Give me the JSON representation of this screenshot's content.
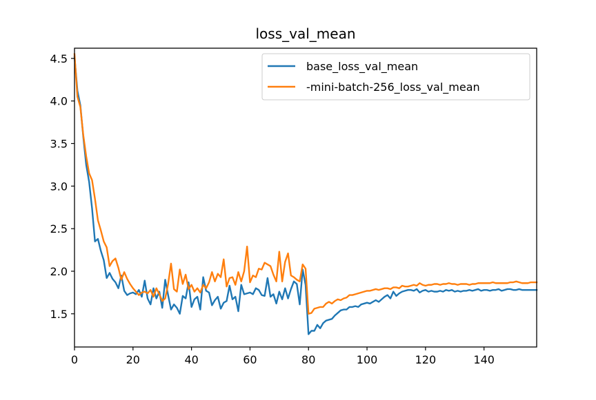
{
  "chart_data": {
    "type": "line",
    "title": "loss_val_mean",
    "xlabel": "",
    "ylabel": "",
    "xlim": [
      0,
      158
    ],
    "ylim": [
      1.11,
      4.62
    ],
    "xticks": [
      0,
      20,
      40,
      60,
      80,
      100,
      120,
      140
    ],
    "yticks": [
      1.5,
      2.0,
      2.5,
      3.0,
      3.5,
      4.0,
      4.5
    ],
    "xtick_labels": [
      "0",
      "20",
      "40",
      "60",
      "80",
      "100",
      "120",
      "140"
    ],
    "ytick_labels": [
      "1.5",
      "2.0",
      "2.5",
      "3.0",
      "3.5",
      "4.0",
      "4.5"
    ],
    "grid": false,
    "legend_position": "top-right",
    "series": [
      {
        "name": "base_loss_val_mean",
        "color": "#1f77b4",
        "points": [
          [
            0,
            4.52
          ],
          [
            1,
            4.12
          ],
          [
            2,
            3.95
          ],
          [
            3,
            3.58
          ],
          [
            4,
            3.25
          ],
          [
            5,
            3.05
          ],
          [
            6,
            2.74
          ],
          [
            7,
            2.35
          ],
          [
            8,
            2.38
          ],
          [
            9,
            2.24
          ],
          [
            10,
            2.13
          ],
          [
            11,
            1.92
          ],
          [
            12,
            1.98
          ],
          [
            13,
            1.91
          ],
          [
            14,
            1.87
          ],
          [
            15,
            1.8
          ],
          [
            16,
            1.95
          ],
          [
            17,
            1.77
          ],
          [
            18,
            1.72
          ],
          [
            19,
            1.74
          ],
          [
            20,
            1.75
          ],
          [
            21,
            1.73
          ],
          [
            22,
            1.78
          ],
          [
            23,
            1.7
          ],
          [
            24,
            1.89
          ],
          [
            25,
            1.68
          ],
          [
            26,
            1.61
          ],
          [
            27,
            1.8
          ],
          [
            28,
            1.68
          ],
          [
            29,
            1.76
          ],
          [
            30,
            1.57
          ],
          [
            31,
            1.9
          ],
          [
            32,
            1.72
          ],
          [
            33,
            1.55
          ],
          [
            34,
            1.61
          ],
          [
            35,
            1.57
          ],
          [
            36,
            1.5
          ],
          [
            37,
            1.71
          ],
          [
            38,
            1.68
          ],
          [
            39,
            1.87
          ],
          [
            40,
            1.58
          ],
          [
            41,
            1.67
          ],
          [
            42,
            1.7
          ],
          [
            43,
            1.55
          ],
          [
            44,
            1.93
          ],
          [
            45,
            1.77
          ],
          [
            46,
            1.75
          ],
          [
            47,
            1.6
          ],
          [
            48,
            1.66
          ],
          [
            49,
            1.7
          ],
          [
            50,
            1.56
          ],
          [
            51,
            1.63
          ],
          [
            52,
            1.65
          ],
          [
            53,
            1.83
          ],
          [
            54,
            1.67
          ],
          [
            55,
            1.7
          ],
          [
            56,
            1.53
          ],
          [
            57,
            1.84
          ],
          [
            58,
            1.73
          ],
          [
            59,
            1.74
          ],
          [
            60,
            1.75
          ],
          [
            61,
            1.73
          ],
          [
            62,
            1.8
          ],
          [
            63,
            1.78
          ],
          [
            64,
            1.72
          ],
          [
            65,
            1.71
          ],
          [
            66,
            1.92
          ],
          [
            67,
            1.7
          ],
          [
            68,
            1.73
          ],
          [
            69,
            1.62
          ],
          [
            70,
            1.76
          ],
          [
            71,
            1.67
          ],
          [
            72,
            1.8
          ],
          [
            73,
            1.68
          ],
          [
            74,
            1.79
          ],
          [
            75,
            1.88
          ],
          [
            76,
            1.85
          ],
          [
            77,
            1.61
          ],
          [
            78,
            2.02
          ],
          [
            79,
            1.84
          ],
          [
            80,
            1.26
          ],
          [
            81,
            1.3
          ],
          [
            82,
            1.3
          ],
          [
            83,
            1.37
          ],
          [
            84,
            1.33
          ],
          [
            85,
            1.39
          ],
          [
            86,
            1.42
          ],
          [
            87,
            1.43
          ],
          [
            88,
            1.44
          ],
          [
            89,
            1.48
          ],
          [
            90,
            1.51
          ],
          [
            91,
            1.54
          ],
          [
            92,
            1.55
          ],
          [
            93,
            1.55
          ],
          [
            94,
            1.58
          ],
          [
            95,
            1.58
          ],
          [
            96,
            1.59
          ],
          [
            97,
            1.58
          ],
          [
            98,
            1.61
          ],
          [
            99,
            1.62
          ],
          [
            100,
            1.63
          ],
          [
            101,
            1.62
          ],
          [
            102,
            1.64
          ],
          [
            103,
            1.66
          ],
          [
            104,
            1.64
          ],
          [
            105,
            1.67
          ],
          [
            106,
            1.7
          ],
          [
            107,
            1.72
          ],
          [
            108,
            1.68
          ],
          [
            109,
            1.76
          ],
          [
            110,
            1.71
          ],
          [
            111,
            1.74
          ],
          [
            112,
            1.76
          ],
          [
            113,
            1.77
          ],
          [
            114,
            1.78
          ],
          [
            115,
            1.78
          ],
          [
            116,
            1.77
          ],
          [
            117,
            1.79
          ],
          [
            118,
            1.75
          ],
          [
            119,
            1.77
          ],
          [
            120,
            1.78
          ],
          [
            121,
            1.76
          ],
          [
            122,
            1.77
          ],
          [
            123,
            1.76
          ],
          [
            124,
            1.76
          ],
          [
            125,
            1.77
          ],
          [
            126,
            1.76
          ],
          [
            127,
            1.78
          ],
          [
            128,
            1.77
          ],
          [
            129,
            1.78
          ],
          [
            130,
            1.76
          ],
          [
            131,
            1.77
          ],
          [
            132,
            1.76
          ],
          [
            133,
            1.77
          ],
          [
            134,
            1.77
          ],
          [
            135,
            1.78
          ],
          [
            136,
            1.77
          ],
          [
            137,
            1.78
          ],
          [
            138,
            1.79
          ],
          [
            139,
            1.77
          ],
          [
            140,
            1.78
          ],
          [
            141,
            1.78
          ],
          [
            142,
            1.77
          ],
          [
            143,
            1.78
          ],
          [
            144,
            1.78
          ],
          [
            145,
            1.79
          ],
          [
            146,
            1.77
          ],
          [
            147,
            1.78
          ],
          [
            148,
            1.79
          ],
          [
            149,
            1.79
          ],
          [
            150,
            1.78
          ],
          [
            151,
            1.78
          ],
          [
            152,
            1.79
          ],
          [
            153,
            1.78
          ],
          [
            154,
            1.78
          ],
          [
            155,
            1.78
          ],
          [
            156,
            1.78
          ],
          [
            157,
            1.78
          ],
          [
            158,
            1.78
          ]
        ]
      },
      {
        "name": "-mini-batch-256_loss_val_mean",
        "color": "#ff7f0e",
        "points": [
          [
            0,
            4.55
          ],
          [
            1,
            4.05
          ],
          [
            2,
            3.93
          ],
          [
            3,
            3.6
          ],
          [
            4,
            3.35
          ],
          [
            5,
            3.15
          ],
          [
            6,
            3.07
          ],
          [
            7,
            2.85
          ],
          [
            8,
            2.6
          ],
          [
            9,
            2.48
          ],
          [
            10,
            2.35
          ],
          [
            11,
            2.28
          ],
          [
            12,
            2.06
          ],
          [
            13,
            2.12
          ],
          [
            14,
            2.15
          ],
          [
            15,
            2.04
          ],
          [
            16,
            1.9
          ],
          [
            17,
            1.99
          ],
          [
            18,
            1.91
          ],
          [
            19,
            1.85
          ],
          [
            20,
            1.8
          ],
          [
            21,
            1.76
          ],
          [
            22,
            1.72
          ],
          [
            23,
            1.75
          ],
          [
            24,
            1.76
          ],
          [
            25,
            1.74
          ],
          [
            26,
            1.78
          ],
          [
            27,
            1.7
          ],
          [
            28,
            1.8
          ],
          [
            29,
            1.73
          ],
          [
            30,
            1.65
          ],
          [
            31,
            1.68
          ],
          [
            32,
            1.85
          ],
          [
            33,
            2.09
          ],
          [
            34,
            1.79
          ],
          [
            35,
            1.76
          ],
          [
            36,
            2.02
          ],
          [
            37,
            1.85
          ],
          [
            38,
            1.96
          ],
          [
            39,
            1.79
          ],
          [
            40,
            1.84
          ],
          [
            41,
            1.76
          ],
          [
            42,
            1.8
          ],
          [
            43,
            1.75
          ],
          [
            44,
            1.84
          ],
          [
            45,
            1.8
          ],
          [
            46,
            1.87
          ],
          [
            47,
            1.99
          ],
          [
            48,
            1.88
          ],
          [
            49,
            1.97
          ],
          [
            50,
            1.93
          ],
          [
            51,
            2.14
          ],
          [
            52,
            1.82
          ],
          [
            53,
            1.92
          ],
          [
            54,
            1.93
          ],
          [
            55,
            1.84
          ],
          [
            56,
            1.99
          ],
          [
            57,
            1.88
          ],
          [
            58,
            2.0
          ],
          [
            59,
            2.29
          ],
          [
            60,
            1.87
          ],
          [
            61,
            1.95
          ],
          [
            62,
            1.93
          ],
          [
            63,
            2.03
          ],
          [
            64,
            2.02
          ],
          [
            65,
            2.1
          ],
          [
            66,
            2.08
          ],
          [
            67,
            2.06
          ],
          [
            68,
            1.96
          ],
          [
            69,
            1.88
          ],
          [
            70,
            2.23
          ],
          [
            71,
            1.88
          ],
          [
            72,
            2.11
          ],
          [
            73,
            2.21
          ],
          [
            74,
            1.95
          ],
          [
            75,
            1.93
          ],
          [
            76,
            1.9
          ],
          [
            77,
            1.88
          ],
          [
            78,
            2.08
          ],
          [
            79,
            2.03
          ],
          [
            80,
            1.5
          ],
          [
            81,
            1.51
          ],
          [
            82,
            1.56
          ],
          [
            83,
            1.57
          ],
          [
            84,
            1.58
          ],
          [
            85,
            1.58
          ],
          [
            86,
            1.62
          ],
          [
            87,
            1.64
          ],
          [
            88,
            1.62
          ],
          [
            89,
            1.65
          ],
          [
            90,
            1.67
          ],
          [
            91,
            1.66
          ],
          [
            92,
            1.68
          ],
          [
            93,
            1.69
          ],
          [
            94,
            1.72
          ],
          [
            95,
            1.72
          ],
          [
            96,
            1.73
          ],
          [
            97,
            1.74
          ],
          [
            98,
            1.75
          ],
          [
            99,
            1.76
          ],
          [
            100,
            1.77
          ],
          [
            101,
            1.77
          ],
          [
            102,
            1.78
          ],
          [
            103,
            1.79
          ],
          [
            104,
            1.78
          ],
          [
            105,
            1.79
          ],
          [
            106,
            1.8
          ],
          [
            107,
            1.8
          ],
          [
            108,
            1.79
          ],
          [
            109,
            1.81
          ],
          [
            110,
            1.81
          ],
          [
            111,
            1.8
          ],
          [
            112,
            1.83
          ],
          [
            113,
            1.82
          ],
          [
            114,
            1.82
          ],
          [
            115,
            1.83
          ],
          [
            116,
            1.84
          ],
          [
            117,
            1.83
          ],
          [
            118,
            1.86
          ],
          [
            119,
            1.84
          ],
          [
            120,
            1.83
          ],
          [
            121,
            1.84
          ],
          [
            122,
            1.84
          ],
          [
            123,
            1.85
          ],
          [
            124,
            1.85
          ],
          [
            125,
            1.84
          ],
          [
            126,
            1.85
          ],
          [
            127,
            1.85
          ],
          [
            128,
            1.86
          ],
          [
            129,
            1.85
          ],
          [
            130,
            1.85
          ],
          [
            131,
            1.84
          ],
          [
            132,
            1.85
          ],
          [
            133,
            1.85
          ],
          [
            134,
            1.85
          ],
          [
            135,
            1.84
          ],
          [
            136,
            1.85
          ],
          [
            137,
            1.85
          ],
          [
            138,
            1.86
          ],
          [
            139,
            1.86
          ],
          [
            140,
            1.86
          ],
          [
            141,
            1.86
          ],
          [
            142,
            1.86
          ],
          [
            143,
            1.87
          ],
          [
            144,
            1.86
          ],
          [
            145,
            1.86
          ],
          [
            146,
            1.86
          ],
          [
            147,
            1.86
          ],
          [
            148,
            1.86
          ],
          [
            149,
            1.87
          ],
          [
            150,
            1.87
          ],
          [
            151,
            1.88
          ],
          [
            152,
            1.87
          ],
          [
            153,
            1.86
          ],
          [
            154,
            1.86
          ],
          [
            155,
            1.86
          ],
          [
            156,
            1.87
          ],
          [
            157,
            1.87
          ],
          [
            158,
            1.87
          ]
        ]
      }
    ]
  }
}
